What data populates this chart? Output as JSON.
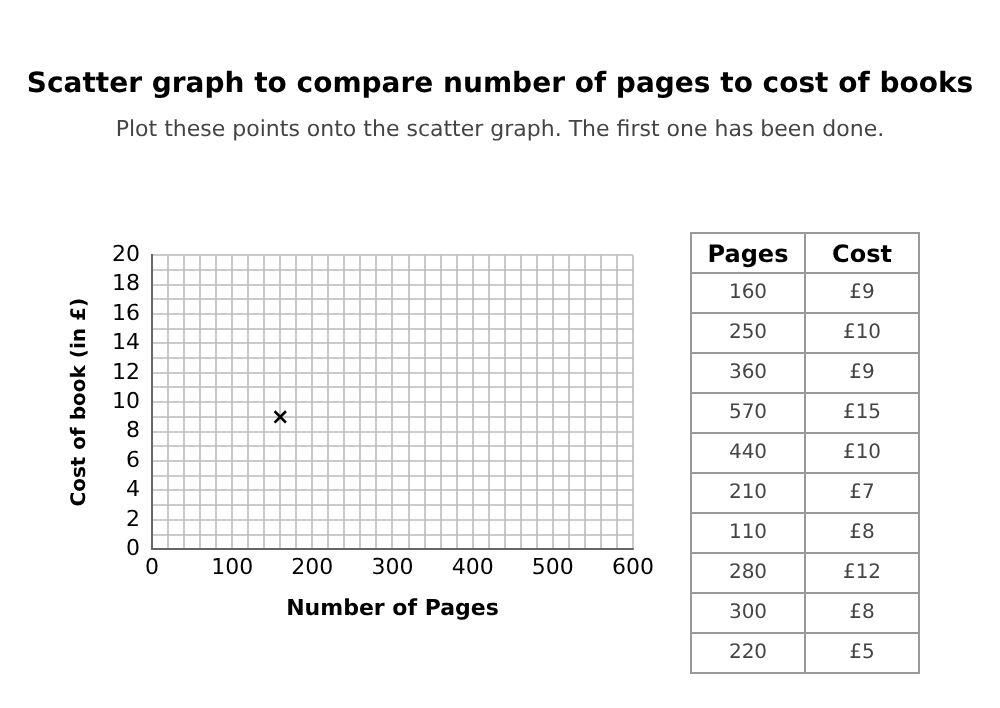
{
  "chart_data": [
    {
      "type": "scatter",
      "title": "Scatter graph to compare number of pages to cost of books",
      "subtitle": "Plot these points onto the scatter graph. The first one has been done.",
      "xlabel": "Number of Pages",
      "ylabel": "Cost of book (in £)",
      "x": [
        160
      ],
      "values": [
        9
      ],
      "color": "#000000",
      "marker": "cross",
      "grid": true,
      "xlim": [
        0,
        600
      ],
      "ylim": [
        0,
        20
      ],
      "xticks": [
        0,
        {
          "value": 20,
          "label": null
        },
        {
          "value": 40,
          "label": null
        },
        {
          "value": 60,
          "label": null
        },
        {
          "value": 80,
          "label": null
        },
        100,
        {
          "value": 120,
          "label": null
        },
        {
          "value": 140,
          "label": null
        },
        {
          "value": 160,
          "label": null
        },
        {
          "value": 180,
          "label": null
        },
        200,
        {
          "value": 220,
          "label": null
        },
        {
          "value": 240,
          "label": null
        },
        {
          "value": 260,
          "label": null
        },
        {
          "value": 280,
          "label": null
        },
        300,
        {
          "value": 320,
          "label": null
        },
        {
          "value": 340,
          "label": null
        },
        {
          "value": 360,
          "label": null
        },
        {
          "value": 380,
          "label": null
        },
        400,
        {
          "value": 420,
          "label": null
        },
        {
          "value": 440,
          "label": null
        },
        {
          "value": 460,
          "label": null
        },
        {
          "value": 480,
          "label": null
        },
        500,
        {
          "value": 520,
          "label": null
        },
        {
          "value": 540,
          "label": null
        },
        {
          "value": 560,
          "label": null
        },
        {
          "value": 580,
          "label": null
        },
        600
      ],
      "yticks": [
        0,
        {
          "value": 1,
          "label": null
        },
        2,
        {
          "value": 3,
          "label": null
        },
        4,
        {
          "value": 5,
          "label": null
        },
        6,
        {
          "value": 7,
          "label": null
        },
        8,
        {
          "value": 9,
          "label": null
        },
        10,
        {
          "value": 11,
          "label": null
        },
        12,
        {
          "value": 13,
          "label": null
        },
        14,
        {
          "value": 15,
          "label": null
        },
        16,
        {
          "value": 17,
          "label": null
        },
        18,
        {
          "value": 19,
          "label": null
        },
        20
      ]
    },
    {
      "type": "other",
      "annotations": [
        "Pages",
        "Cost",
        "160",
        "£9",
        "250",
        "£10",
        "360",
        "£9",
        "570",
        "£15",
        "440",
        "£10",
        "210",
        "£7",
        "110",
        "£8",
        "280",
        "£12",
        "300",
        "£8",
        "220",
        "£5"
      ]
    }
  ]
}
